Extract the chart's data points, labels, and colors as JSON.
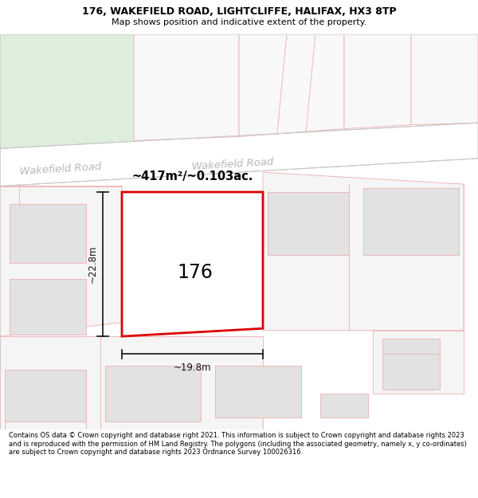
{
  "title_line1": "176, WAKEFIELD ROAD, LIGHTCLIFFE, HALIFAX, HX3 8TP",
  "title_line2": "Map shows position and indicative extent of the property.",
  "footer_text": "Contains OS data © Crown copyright and database right 2021. This information is subject to Crown copyright and database rights 2023 and is reproduced with the permission of HM Land Registry. The polygons (including the associated geometry, namely x, y co-ordinates) are subject to Crown copyright and database rights 2023 Ordnance Survey 100026316.",
  "area_label": "~417m²/~0.103ac.",
  "width_label": "~19.8m",
  "height_label": "~22.8m",
  "property_number": "176",
  "bg_color": "#f5f5f5",
  "road_color": "#ffffff",
  "road_edge_color": "#c8c8c8",
  "building_fill": "#e2e2e2",
  "building_edge": "#f0b8b8",
  "parcel_edge": "#f0b8b8",
  "property_outline_color": "#dd0000",
  "dim_line_color": "#111111",
  "road_label_color": "#b8b8b8",
  "road_label1": "Wakefield Road",
  "road_label2": "Wakefield Road",
  "green_patch_color": "#ddeedd",
  "title_fontsize": 9.0,
  "subtitle_fontsize": 8.0,
  "footer_fontsize": 6.0
}
